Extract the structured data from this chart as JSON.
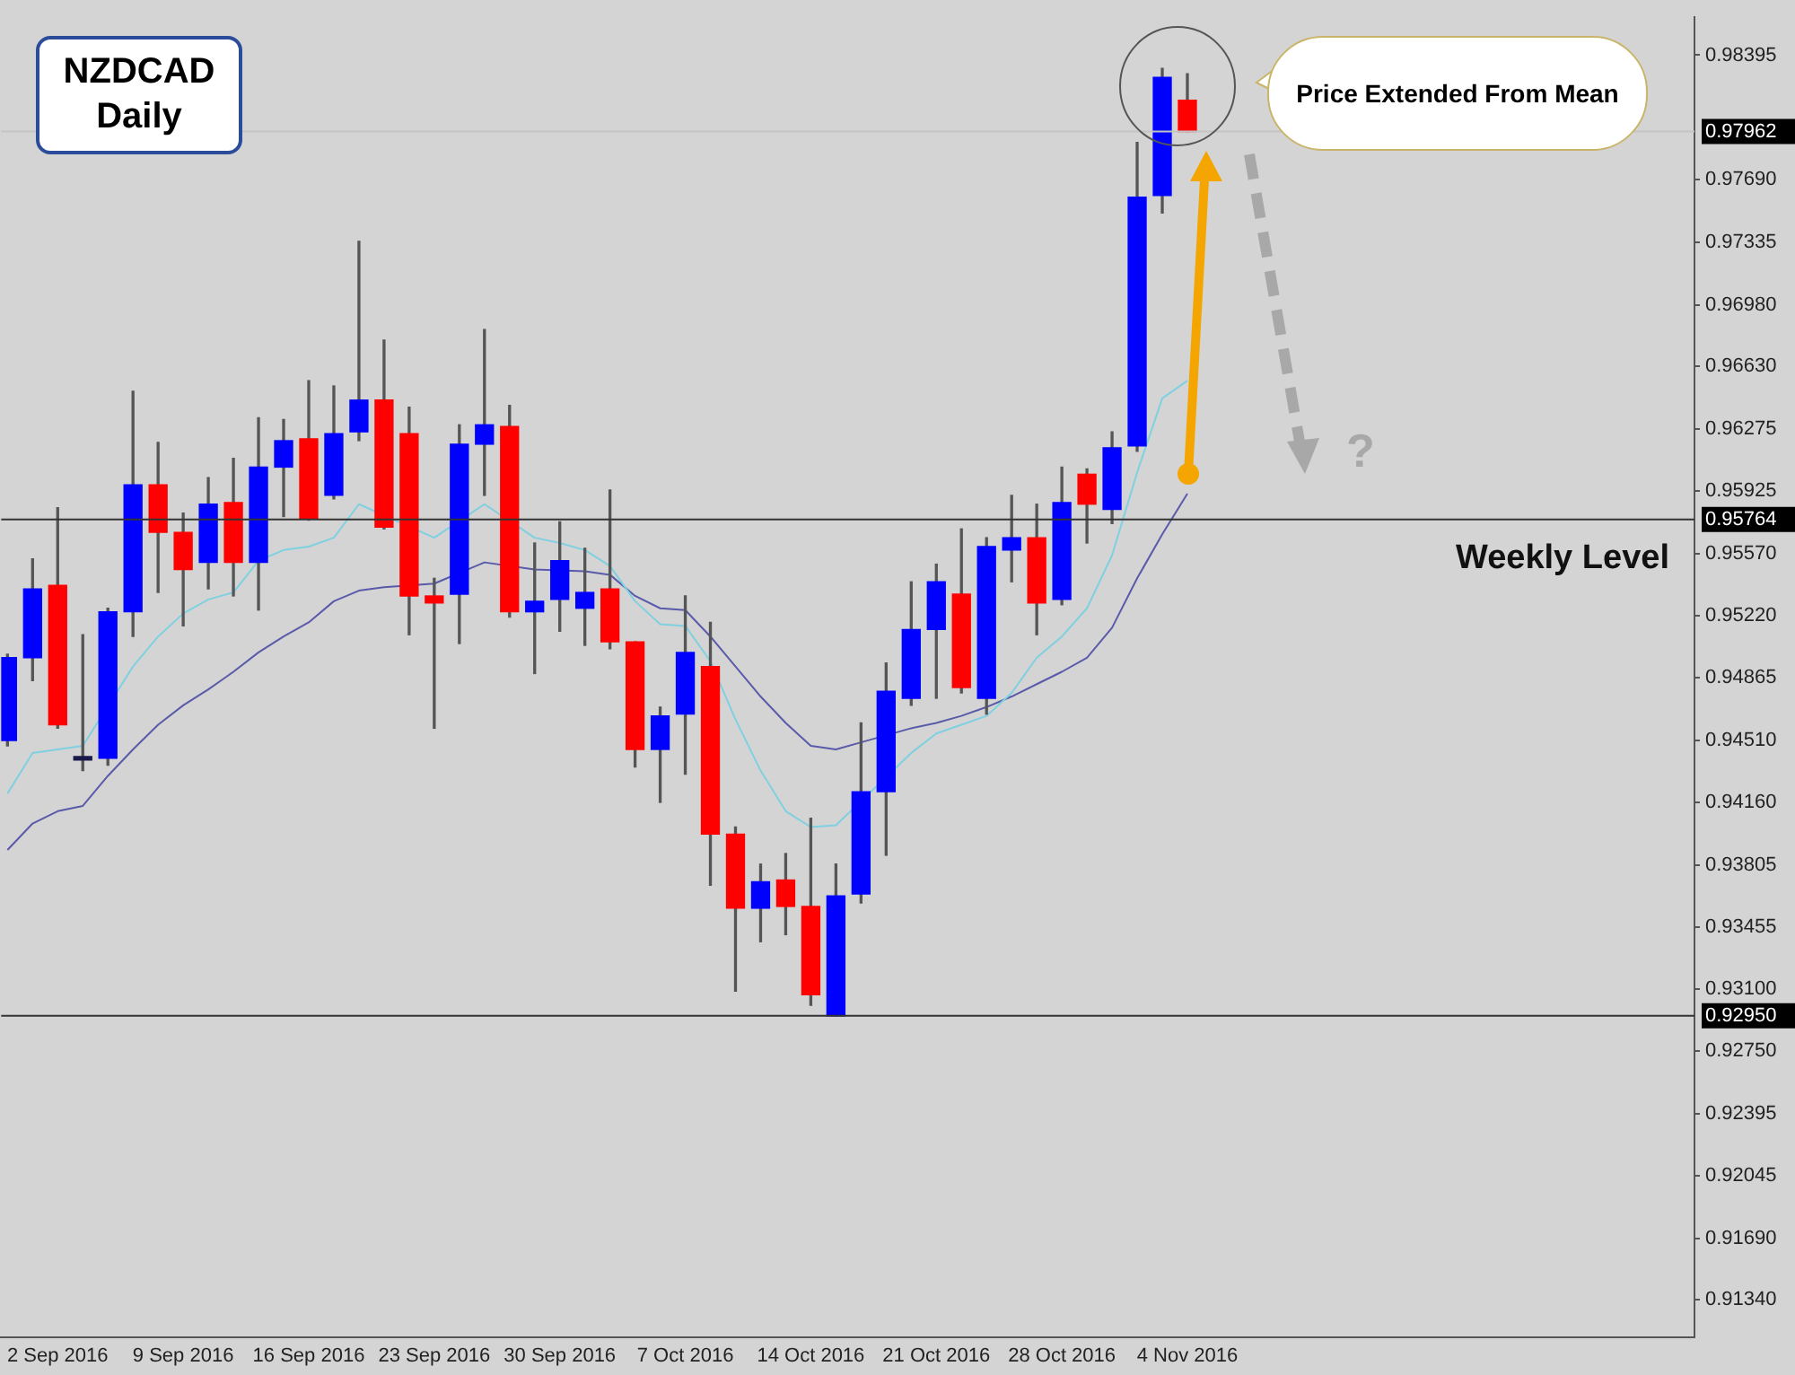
{
  "chart_data": {
    "type": "candlestick",
    "title": "NZDCAD Daily",
    "categories": [
      null,
      null,
      "2 Sep 2016",
      null,
      null,
      null,
      null,
      "9 Sep 2016",
      null,
      null,
      null,
      null,
      "16 Sep 2016",
      null,
      null,
      null,
      null,
      "23 Sep 2016",
      null,
      null,
      null,
      null,
      "30 Sep 2016",
      null,
      null,
      null,
      null,
      "7 Oct 2016",
      null,
      null,
      null,
      null,
      "14 Oct 2016",
      null,
      null,
      null,
      null,
      "21 Oct 2016",
      null,
      null,
      null,
      null,
      "28 Oct 2016",
      null,
      null,
      null,
      null,
      "4 Nov 2016"
    ],
    "ohlc": [
      [
        0.9451,
        0.95,
        0.9448,
        0.9498
      ],
      [
        0.9498,
        0.9554,
        0.9485,
        0.9537
      ],
      [
        0.9539,
        0.9583,
        0.9458,
        0.946
      ],
      [
        0.944,
        0.9511,
        0.9434,
        0.944
      ],
      [
        0.9441,
        0.9526,
        0.9437,
        0.9524
      ],
      [
        0.9524,
        0.9649,
        0.951,
        0.9596
      ],
      [
        0.9596,
        0.962,
        0.9535,
        0.9569
      ],
      [
        0.9569,
        0.958,
        0.9516,
        0.9548
      ],
      [
        0.9552,
        0.96,
        0.9537,
        0.9585
      ],
      [
        0.9586,
        0.9611,
        0.9533,
        0.9552
      ],
      [
        0.9552,
        0.9634,
        0.9525,
        0.9606
      ],
      [
        0.9606,
        0.9633,
        0.9578,
        0.9621
      ],
      [
        0.9622,
        0.9655,
        0.9576,
        0.9577
      ],
      [
        0.959,
        0.9652,
        0.9588,
        0.9625
      ],
      [
        0.9626,
        0.9734,
        0.9621,
        0.9644
      ],
      [
        0.9644,
        0.9678,
        0.9571,
        0.9572
      ],
      [
        0.9625,
        0.964,
        0.9511,
        0.9533
      ],
      [
        0.9533,
        0.9543,
        0.9458,
        0.9529
      ],
      [
        0.9534,
        0.963,
        0.9506,
        0.9619
      ],
      [
        0.9619,
        0.9684,
        0.959,
        0.963
      ],
      [
        0.9629,
        0.9641,
        0.9521,
        0.9524
      ],
      [
        0.9524,
        0.9563,
        0.9489,
        0.953
      ],
      [
        0.9531,
        0.9575,
        0.9513,
        0.9553
      ],
      [
        0.9526,
        0.956,
        0.9505,
        0.9535
      ],
      [
        0.9537,
        0.9593,
        0.9503,
        0.9507
      ],
      [
        0.9507,
        0.9507,
        0.9436,
        0.9446
      ],
      [
        0.9446,
        0.947,
        0.9416,
        0.9465
      ],
      [
        0.9466,
        0.9533,
        0.9432,
        0.9501
      ],
      [
        0.9493,
        0.9518,
        0.9369,
        0.9398
      ],
      [
        0.9398,
        0.9402,
        0.9309,
        0.9356
      ],
      [
        0.9356,
        0.9381,
        0.9337,
        0.9371
      ],
      [
        0.9372,
        0.9387,
        0.9341,
        0.9357
      ],
      [
        0.9357,
        0.9407,
        0.9301,
        0.9307
      ],
      [
        0.9295,
        0.9381,
        0.9295,
        0.9363
      ],
      [
        0.9364,
        0.9461,
        0.9359,
        0.9422
      ],
      [
        0.9422,
        0.9495,
        0.9386,
        0.9479
      ],
      [
        0.9475,
        0.9541,
        0.9471,
        0.9514
      ],
      [
        0.9514,
        0.9551,
        0.9475,
        0.9541
      ],
      [
        0.9534,
        0.9571,
        0.9478,
        0.9481
      ],
      [
        0.9475,
        0.9566,
        0.9466,
        0.9561
      ],
      [
        0.9559,
        0.959,
        0.9541,
        0.9566
      ],
      [
        0.9566,
        0.9585,
        0.9511,
        0.9529
      ],
      [
        0.9531,
        0.9606,
        0.9528,
        0.9586
      ],
      [
        0.9602,
        0.9605,
        0.9563,
        0.9585
      ],
      [
        0.9582,
        0.9626,
        0.9574,
        0.9617
      ],
      [
        0.9618,
        0.979,
        0.9615,
        0.9759
      ],
      [
        0.976,
        0.9832,
        0.975,
        0.9827
      ],
      [
        0.9814,
        0.9829,
        0.97962,
        0.97962
      ]
    ],
    "colors": [
      "#0000ff",
      "#0000ff",
      "#ff0000",
      "#1a1a4a",
      "#0000ff",
      "#0000ff",
      "#ff0000",
      "#ff0000",
      "#0000ff",
      "#ff0000",
      "#0000ff",
      "#0000ff",
      "#ff0000",
      "#0000ff",
      "#0000ff",
      "#ff0000",
      "#ff0000",
      "#ff0000",
      "#0000ff",
      "#0000ff",
      "#ff0000",
      "#0000ff",
      "#0000ff",
      "#0000ff",
      "#ff0000",
      "#ff0000",
      "#0000ff",
      "#0000ff",
      "#ff0000",
      "#ff0000",
      "#0000ff",
      "#ff0000",
      "#ff0000",
      "#0000ff",
      "#0000ff",
      "#0000ff",
      "#0000ff",
      "#0000ff",
      "#ff0000",
      "#0000ff",
      "#0000ff",
      "#ff0000",
      "#0000ff",
      "#ff0000",
      "#0000ff",
      "#0000ff",
      "#0000ff",
      "#ff0000"
    ],
    "series": [
      {
        "type": "line",
        "color": "#7fd0e0",
        "values": [
          0.9421,
          0.9444,
          0.9446,
          0.9448,
          null,
          0.9493,
          0.951,
          0.9523,
          0.9531,
          0.9535,
          0.9553,
          0.9559,
          0.9561,
          0.9566,
          0.9585,
          null,
          null,
          0.9566,
          null,
          0.9585,
          null,
          0.9566,
          0.9563,
          0.9559,
          0.955,
          0.953,
          0.9517,
          0.9516,
          0.9496,
          0.9463,
          0.9434,
          0.9411,
          0.9402,
          0.9403,
          null,
          null,
          0.9444,
          0.9455,
          0.946,
          0.9465,
          0.9478,
          0.9498,
          0.951,
          0.9526,
          0.9556,
          0.9603,
          0.9645,
          0.9655
        ]
      },
      {
        "type": "line",
        "color": "#5a5aaa",
        "values": [
          0.9389,
          0.9404,
          0.9411,
          0.9414,
          0.9431,
          0.9446,
          0.946,
          0.9471,
          0.948,
          0.949,
          0.9501,
          0.951,
          0.9518,
          0.953,
          0.9536,
          0.9538,
          null,
          0.954,
          null,
          0.9552,
          null,
          0.9548,
          null,
          0.9547,
          0.9545,
          0.9533,
          0.9526,
          0.9525,
          0.951,
          0.9493,
          0.9476,
          0.9461,
          0.9448,
          0.9446,
          0.945,
          null,
          0.9458,
          0.9461,
          0.9465,
          0.947,
          0.9476,
          0.9483,
          0.949,
          0.9498,
          0.9515,
          0.9543,
          0.9568,
          0.9591
        ]
      }
    ],
    "ylim": [
      0.9113,
      0.9861
    ],
    "yticks": [
      0.98395,
      {
        "value": 0.9769,
        "label": "0.97690"
      },
      0.97335,
      {
        "value": 0.9698,
        "label": "0.96980"
      },
      {
        "value": 0.9663,
        "label": "0.96630"
      },
      0.96275,
      0.95925,
      {
        "value": 0.9557,
        "label": "0.95570"
      },
      {
        "value": 0.9522,
        "label": "0.95220"
      },
      0.94865,
      {
        "value": 0.9451,
        "label": "0.94510"
      },
      {
        "value": 0.9416,
        "label": "0.94160"
      },
      0.93805,
      0.93455,
      {
        "value": 0.931,
        "label": "0.93100"
      },
      {
        "value": 0.9275,
        "label": "0.92750"
      },
      0.92395,
      0.92045,
      {
        "value": 0.9169,
        "label": "0.91690"
      },
      {
        "value": 0.9134,
        "label": "0.91340"
      }
    ],
    "ref_lines": [
      {
        "axis": "y",
        "value": 0.97962,
        "label": "0.97962",
        "color": "#c4c4c4"
      },
      {
        "axis": "y",
        "value": 0.95764,
        "label": "0.95764",
        "color": "#333333"
      },
      {
        "axis": "y",
        "value": 0.9295,
        "label": "0.92950",
        "color": "#333333"
      }
    ],
    "annotations": [
      "Price Extended From Mean",
      {
        "text": "Weekly Level",
        "y": 0.95764
      },
      "?"
    ],
    "marker": "none"
  }
}
